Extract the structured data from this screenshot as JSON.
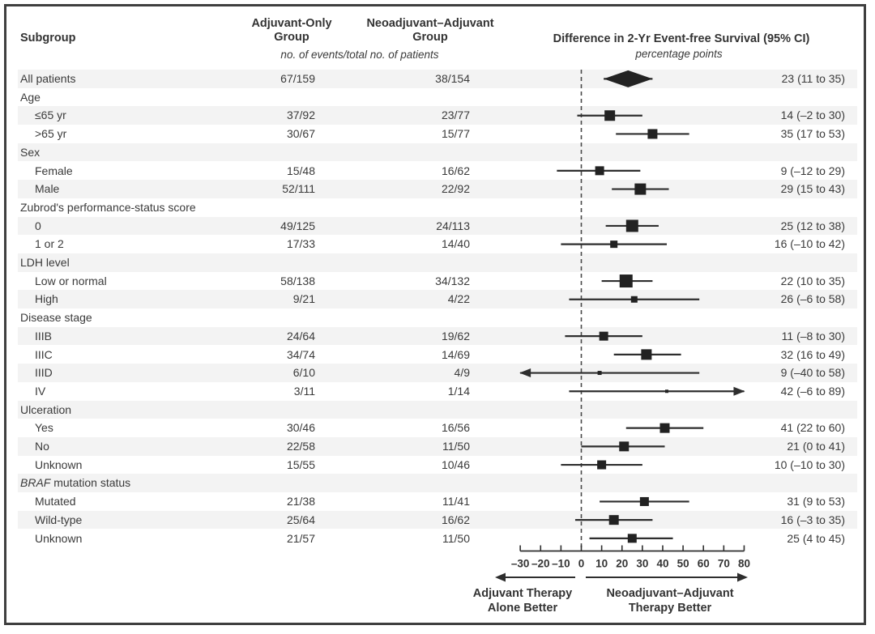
{
  "header": {
    "subgroup": "Subgroup",
    "col1_line1": "Adjuvant-Only",
    "col1_line2": "Group",
    "col2_line1": "Neoadjuvant–Adjuvant",
    "col2_line2": "Group",
    "events_note": "no. of events/total no. of patients",
    "plot_title": "Difference in 2-Yr Event-free Survival (95% CI)",
    "plot_units": "percentage points"
  },
  "footer": {
    "left_line1": "Adjuvant Therapy",
    "left_line2": "Alone Better",
    "right_line1": "Neoadjuvant–Adjuvant",
    "right_line2": "Therapy Better"
  },
  "colors": {
    "frame_border": "#3f3f3f",
    "row_shade": "#f3f3f3",
    "text": "#3a3a3a",
    "marker": "#222222",
    "ci_line": "#2e2e2e",
    "zero_line": "#4a4a4a"
  },
  "chart_data": {
    "type": "forest",
    "title": "Difference in 2-Yr Event-free Survival (95% CI)",
    "units": "percentage points",
    "x_axis": {
      "min": -30,
      "max": 80,
      "tick_step": 10,
      "ticks": [
        -30,
        -20,
        -10,
        0,
        10,
        20,
        30,
        40,
        50,
        60,
        70,
        80
      ],
      "tick_labels": [
        "–30",
        "–20",
        "–10",
        "0",
        "10",
        "20",
        "30",
        "40",
        "50",
        "60",
        "70",
        "80"
      ],
      "zero_reference_dashed": true
    },
    "rows": [
      {
        "type": "overall",
        "label": "All patients",
        "col1": "67/159",
        "col2": "38/154",
        "est": 23,
        "lo": 11,
        "hi": 35,
        "ci_text": "23 (11 to 35)",
        "marker": "diamond"
      },
      {
        "type": "group",
        "label": "Age"
      },
      {
        "type": "item",
        "label": "≤65 yr",
        "col1": "37/92",
        "col2": "23/77",
        "est": 14,
        "lo": -2,
        "hi": 30,
        "ci_text": "14 (–2 to 30)",
        "marker": "square",
        "size": 13
      },
      {
        "type": "item",
        "label": ">65 yr",
        "col1": "30/67",
        "col2": "15/77",
        "est": 35,
        "lo": 17,
        "hi": 53,
        "ci_text": "35 (17 to 53)",
        "marker": "square",
        "size": 12
      },
      {
        "type": "group",
        "label": "Sex"
      },
      {
        "type": "item",
        "label": "Female",
        "col1": "15/48",
        "col2": "16/62",
        "est": 9,
        "lo": -12,
        "hi": 29,
        "ci_text": "9 (–12 to 29)",
        "marker": "square",
        "size": 11
      },
      {
        "type": "item",
        "label": "Male",
        "col1": "52/111",
        "col2": "22/92",
        "est": 29,
        "lo": 15,
        "hi": 43,
        "ci_text": "29 (15 to 43)",
        "marker": "square",
        "size": 14
      },
      {
        "type": "group",
        "label": "Zubrod's performance-status score"
      },
      {
        "type": "item",
        "label": "0",
        "col1": "49/125",
        "col2": "24/113",
        "est": 25,
        "lo": 12,
        "hi": 38,
        "ci_text": "25 (12 to 38)",
        "marker": "square",
        "size": 15
      },
      {
        "type": "item",
        "label": "1 or 2",
        "col1": "17/33",
        "col2": "14/40",
        "est": 16,
        "lo": -10,
        "hi": 42,
        "ci_text": "16 (–10 to 42)",
        "marker": "square",
        "size": 9
      },
      {
        "type": "group",
        "label": "LDH level"
      },
      {
        "type": "item",
        "label": "Low or normal",
        "col1": "58/138",
        "col2": "34/132",
        "est": 22,
        "lo": 10,
        "hi": 35,
        "ci_text": "22 (10 to 35)",
        "marker": "square",
        "size": 16
      },
      {
        "type": "item",
        "label": "High",
        "col1": "9/21",
        "col2": "4/22",
        "est": 26,
        "lo": -6,
        "hi": 58,
        "ci_text": "26 (–6 to 58)",
        "marker": "square",
        "size": 8
      },
      {
        "type": "group",
        "label": "Disease stage"
      },
      {
        "type": "item",
        "label": "IIIB",
        "col1": "24/64",
        "col2": "19/62",
        "est": 11,
        "lo": -8,
        "hi": 30,
        "ci_text": "11 (–8 to 30)",
        "marker": "square",
        "size": 11
      },
      {
        "type": "item",
        "label": "IIIC",
        "col1": "34/74",
        "col2": "14/69",
        "est": 32,
        "lo": 16,
        "hi": 49,
        "ci_text": "32 (16 to 49)",
        "marker": "square",
        "size": 13
      },
      {
        "type": "item",
        "label": "IIID",
        "col1": "6/10",
        "col2": "4/9",
        "est": 9,
        "lo": -40,
        "hi": 58,
        "ci_text": "9 (–40 to 58)",
        "marker": "square",
        "size": 5
      },
      {
        "type": "item",
        "label": "IV",
        "col1": "3/11",
        "col2": "1/14",
        "est": 42,
        "lo": -6,
        "hi": 89,
        "ci_text": "42 (–6 to 89)",
        "marker": "square",
        "size": 4
      },
      {
        "type": "group",
        "label": "Ulceration"
      },
      {
        "type": "item",
        "label": "Yes",
        "col1": "30/46",
        "col2": "16/56",
        "est": 41,
        "lo": 22,
        "hi": 60,
        "ci_text": "41 (22 to 60)",
        "marker": "square",
        "size": 12
      },
      {
        "type": "item",
        "label": "No",
        "col1": "22/58",
        "col2": "11/50",
        "est": 21,
        "lo": 0,
        "hi": 41,
        "ci_text": "21 (0 to 41)",
        "marker": "square",
        "size": 12
      },
      {
        "type": "item",
        "label": "Unknown",
        "col1": "15/55",
        "col2": "10/46",
        "est": 10,
        "lo": -10,
        "hi": 30,
        "ci_text": "10 (–10 to 30)",
        "marker": "square",
        "size": 11
      },
      {
        "type": "group",
        "label_italic_prefix": "BRAF",
        "label": " mutation status"
      },
      {
        "type": "item",
        "label": "Mutated",
        "col1": "21/38",
        "col2": "11/41",
        "est": 31,
        "lo": 9,
        "hi": 53,
        "ci_text": "31 (9 to 53)",
        "marker": "square",
        "size": 11
      },
      {
        "type": "item",
        "label": "Wild-type",
        "col1": "25/64",
        "col2": "16/62",
        "est": 16,
        "lo": -3,
        "hi": 35,
        "ci_text": "16 (–3 to 35)",
        "marker": "square",
        "size": 12
      },
      {
        "type": "item",
        "label": "Unknown",
        "col1": "21/57",
        "col2": "11/50",
        "est": 25,
        "lo": 4,
        "hi": 45,
        "ci_text": "25 (4 to 45)",
        "marker": "square",
        "size": 11
      }
    ],
    "direction_labels": {
      "left": "Adjuvant Therapy Alone Better",
      "right": "Neoadjuvant–Adjuvant Therapy Better"
    }
  }
}
